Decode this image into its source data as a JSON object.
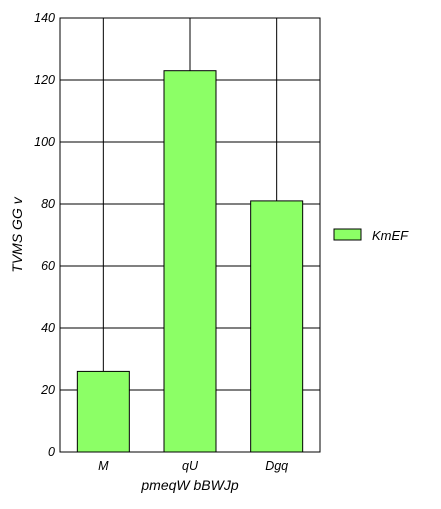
{
  "chart_data": {
    "type": "bar",
    "title": "",
    "xlabel": "pmeqW bBWJp",
    "ylabel": "TVMS  GG  v",
    "categories": [
      "M",
      "qU",
      "Dgq"
    ],
    "series": [
      {
        "name": "KmEF",
        "values": [
          26,
          123,
          81
        ]
      }
    ],
    "ylim": [
      0,
      140
    ],
    "yticks": [
      0,
      20,
      40,
      60,
      80,
      100,
      120,
      140
    ],
    "grid": true,
    "legend_position": "right",
    "bar_color": "#8cff66",
    "bar_edge_color": "#000000",
    "grid_color": "#000000"
  }
}
